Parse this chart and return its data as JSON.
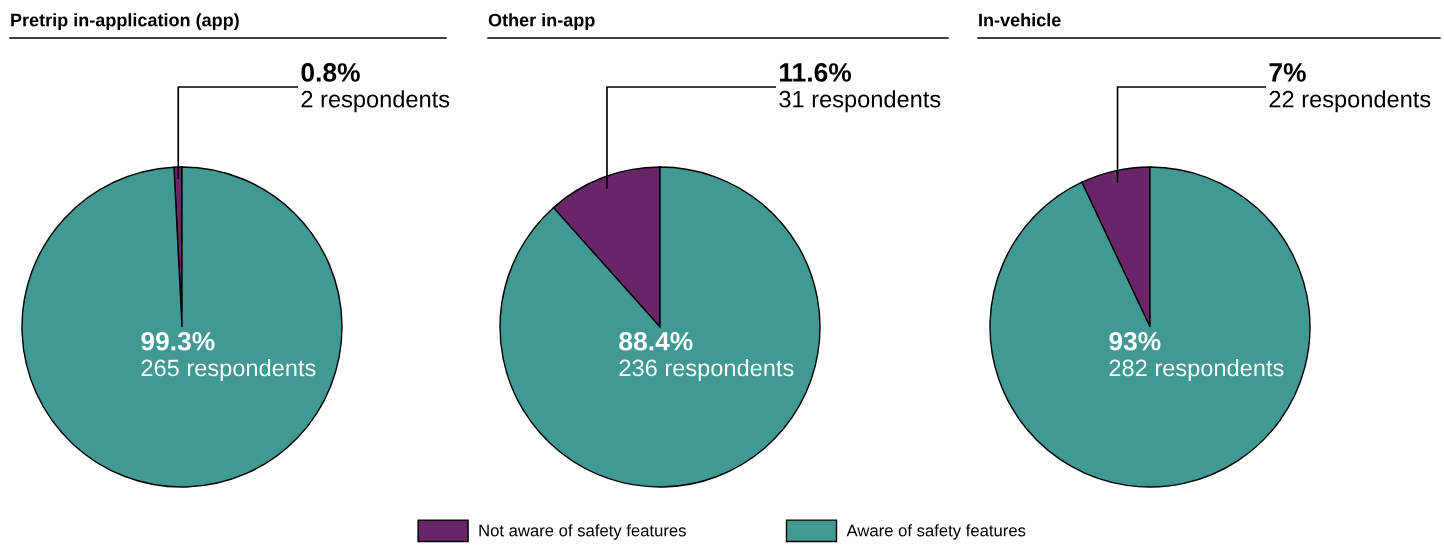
{
  "chart_data": [
    {
      "type": "pie",
      "title": "Pretrip in-application (app)",
      "categories": [
        "Not aware of safety features",
        "Aware of safety features"
      ],
      "values": [
        0.8,
        99.3
      ],
      "colors": [
        "#6a2468",
        "#409992"
      ],
      "value_labels": [
        "0.8%\n2 respondents",
        "99.3%\n265 respondents"
      ],
      "legend": "bottom"
    },
    {
      "type": "pie",
      "title": "Other in-app",
      "categories": [
        null,
        null
      ],
      "values": [
        11.6,
        88.4
      ],
      "colors": [
        "#6a2468",
        "#409992"
      ],
      "value_labels": [
        "11.6%\n31 respondents",
        "88.4%\n236 respondents"
      ]
    },
    {
      "type": "pie",
      "title": "In-vehicle",
      "categories": [
        null,
        null
      ],
      "values": [
        7,
        93
      ],
      "colors": [
        "#6a2468",
        "#409992"
      ],
      "value_labels": [
        "7%\n22 respondents",
        "93%\n282 respondents"
      ]
    }
  ]
}
